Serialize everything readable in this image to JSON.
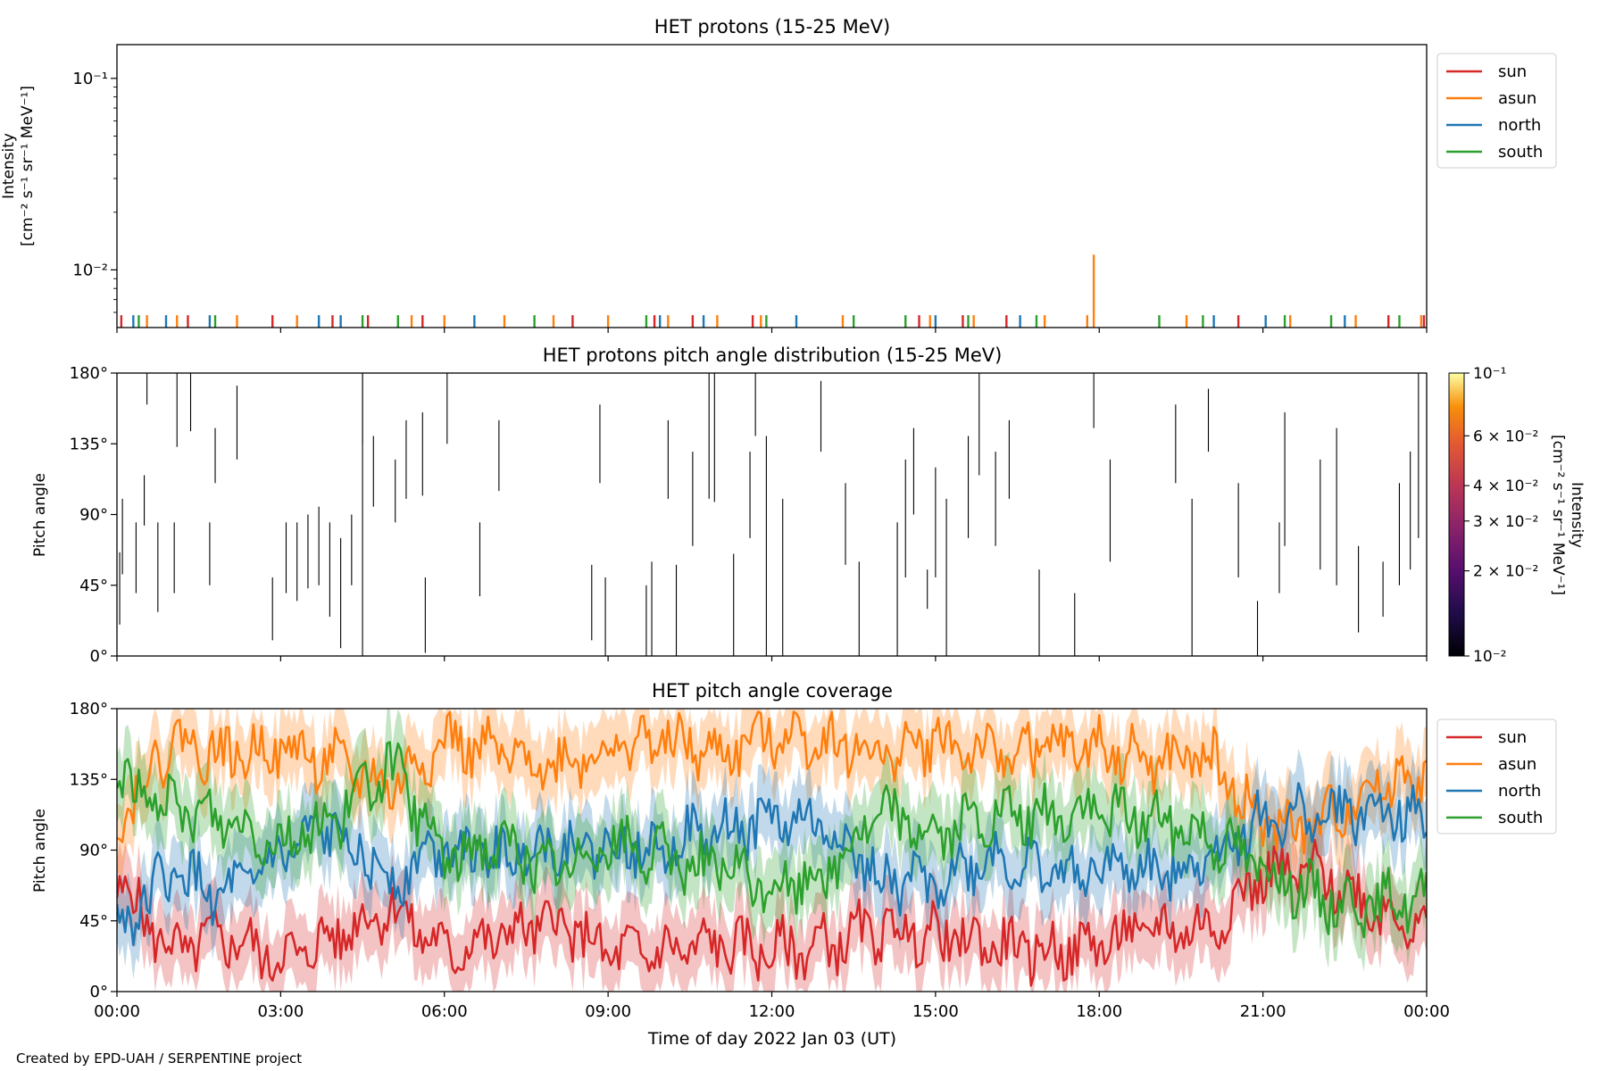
{
  "figure": {
    "footer": "Created by EPD-UAH / SERPENTINE project",
    "xlabel": "Time of day 2022 Jan 03 (UT)",
    "xticks": [
      "00:00",
      "03:00",
      "06:00",
      "09:00",
      "12:00",
      "15:00",
      "18:00",
      "21:00",
      "00:00"
    ]
  },
  "colors": {
    "sun": "#d62728",
    "asun": "#ff7f0e",
    "north": "#1f77b4",
    "south": "#2ca02c"
  },
  "chart_data": [
    {
      "type": "line",
      "title": "HET protons (15-25 MeV)",
      "ylabel": [
        "Intensity",
        "[cm⁻² s⁻¹ sr⁻¹ MeV⁻¹]"
      ],
      "yscale": "log",
      "ylim": [
        0.005,
        0.15
      ],
      "yticks": [
        "10⁻¹",
        "10⁻²"
      ],
      "xlim_hours": [
        0,
        24
      ],
      "legend": {
        "placement": "outside-right",
        "entries": [
          "sun",
          "asun",
          "north",
          "south"
        ]
      },
      "series": [
        {
          "name": "sun",
          "color": "#d62728",
          "spikes": [
            [
              0.08,
              0.0058
            ],
            [
              1.3,
              0.0058
            ],
            [
              2.85,
              0.0058
            ],
            [
              3.95,
              0.0058
            ],
            [
              4.6,
              0.0058
            ],
            [
              5.6,
              0.0058
            ],
            [
              8.35,
              0.0058
            ],
            [
              9.85,
              0.0058
            ],
            [
              10.55,
              0.0058
            ],
            [
              11.65,
              0.0058
            ],
            [
              14.7,
              0.0058
            ],
            [
              15.5,
              0.0058
            ],
            [
              16.3,
              0.0058
            ],
            [
              20.55,
              0.0058
            ],
            [
              23.3,
              0.0058
            ],
            [
              23.95,
              0.0058
            ]
          ]
        },
        {
          "name": "asun",
          "color": "#ff7f0e",
          "spikes": [
            [
              0.55,
              0.0058
            ],
            [
              1.1,
              0.0058
            ],
            [
              2.2,
              0.0058
            ],
            [
              3.3,
              0.0058
            ],
            [
              5.4,
              0.0058
            ],
            [
              6.0,
              0.0058
            ],
            [
              7.1,
              0.0058
            ],
            [
              8.0,
              0.0058
            ],
            [
              9.0,
              0.0058
            ],
            [
              10.1,
              0.0058
            ],
            [
              11.0,
              0.0058
            ],
            [
              11.8,
              0.0058
            ],
            [
              13.3,
              0.0058
            ],
            [
              14.9,
              0.0058
            ],
            [
              15.7,
              0.0058
            ],
            [
              17.0,
              0.0058
            ],
            [
              17.78,
              0.0058
            ],
            [
              17.9,
              0.012
            ],
            [
              19.6,
              0.0058
            ],
            [
              21.5,
              0.0058
            ],
            [
              22.7,
              0.0058
            ],
            [
              23.9,
              0.0058
            ]
          ]
        },
        {
          "name": "north",
          "color": "#1f77b4",
          "spikes": [
            [
              0.3,
              0.0058
            ],
            [
              0.9,
              0.0058
            ],
            [
              1.7,
              0.0058
            ],
            [
              3.7,
              0.0058
            ],
            [
              4.1,
              0.0058
            ],
            [
              6.55,
              0.0058
            ],
            [
              9.95,
              0.0058
            ],
            [
              10.75,
              0.0058
            ],
            [
              12.45,
              0.0058
            ],
            [
              15.0,
              0.0058
            ],
            [
              16.55,
              0.0058
            ],
            [
              20.1,
              0.0058
            ],
            [
              21.05,
              0.0058
            ],
            [
              22.5,
              0.0058
            ]
          ]
        },
        {
          "name": "south",
          "color": "#2ca02c",
          "spikes": [
            [
              0.4,
              0.0058
            ],
            [
              1.8,
              0.0058
            ],
            [
              4.5,
              0.0058
            ],
            [
              5.15,
              0.0058
            ],
            [
              7.65,
              0.0058
            ],
            [
              9.7,
              0.0058
            ],
            [
              11.9,
              0.0058
            ],
            [
              13.5,
              0.0058
            ],
            [
              14.45,
              0.0058
            ],
            [
              15.6,
              0.0058
            ],
            [
              16.85,
              0.0058
            ],
            [
              19.1,
              0.0058
            ],
            [
              19.9,
              0.0058
            ],
            [
              21.4,
              0.0058
            ],
            [
              22.25,
              0.0058
            ],
            [
              23.5,
              0.0058
            ]
          ]
        }
      ]
    },
    {
      "type": "heatmap",
      "title": "HET protons pitch angle distribution (15-25 MeV)",
      "ylabel": "Pitch angle",
      "yticks": [
        "0°",
        "45°",
        "90°",
        "135°",
        "180°"
      ],
      "ylim": [
        0,
        180
      ],
      "xlim_hours": [
        0,
        24
      ],
      "colorbar": {
        "label": [
          "Intensity",
          "[cm⁻² s⁻¹ sr⁻¹ MeV⁻¹]"
        ],
        "scale": "log",
        "range": [
          0.01,
          0.1
        ],
        "colormap": "inferno",
        "ticks": [
          {
            "value": 0.1,
            "label": "10⁻¹"
          },
          {
            "value": 0.06,
            "label": "6 × 10⁻²"
          },
          {
            "value": 0.04,
            "label": "4 × 10⁻²"
          },
          {
            "value": 0.03,
            "label": "3 × 10⁻²"
          },
          {
            "value": 0.02,
            "label": "2 × 10⁻²"
          },
          {
            "value": 0.01,
            "label": "10⁻²"
          }
        ]
      },
      "segments": [
        [
          0.05,
          20,
          66
        ],
        [
          0.1,
          52,
          100
        ],
        [
          0.35,
          40,
          85
        ],
        [
          0.5,
          83,
          115
        ],
        [
          0.75,
          28,
          85
        ],
        [
          0.55,
          160,
          180
        ],
        [
          1.05,
          40,
          85
        ],
        [
          1.1,
          133,
          180
        ],
        [
          1.35,
          143,
          180
        ],
        [
          1.7,
          45,
          85
        ],
        [
          1.8,
          110,
          145
        ],
        [
          2.2,
          125,
          172
        ],
        [
          2.85,
          10,
          50
        ],
        [
          3.1,
          40,
          85
        ],
        [
          3.3,
          35,
          85
        ],
        [
          3.5,
          43,
          90
        ],
        [
          3.7,
          45,
          95
        ],
        [
          3.9,
          25,
          85
        ],
        [
          4.1,
          5,
          75
        ],
        [
          4.3,
          45,
          90
        ],
        [
          4.5,
          0,
          180
        ],
        [
          4.5,
          135,
          180
        ],
        [
          4.7,
          95,
          140
        ],
        [
          5.1,
          85,
          125
        ],
        [
          5.3,
          100,
          150
        ],
        [
          5.6,
          102,
          155
        ],
        [
          5.65,
          2,
          50
        ],
        [
          6.05,
          135,
          180
        ],
        [
          6.65,
          38,
          85
        ],
        [
          7.0,
          105,
          150
        ],
        [
          8.7,
          10,
          58
        ],
        [
          8.85,
          110,
          160
        ],
        [
          8.95,
          0,
          50
        ],
        [
          9.7,
          0,
          45
        ],
        [
          9.8,
          0,
          60
        ],
        [
          10.1,
          100,
          150
        ],
        [
          10.25,
          0,
          58
        ],
        [
          10.55,
          70,
          130
        ],
        [
          10.85,
          100,
          180
        ],
        [
          10.95,
          98,
          180
        ],
        [
          11.3,
          0,
          65
        ],
        [
          11.6,
          75,
          130
        ],
        [
          11.7,
          140,
          180
        ],
        [
          11.9,
          0,
          140
        ],
        [
          12.2,
          0,
          100
        ],
        [
          12.9,
          130,
          175
        ],
        [
          13.35,
          58,
          110
        ],
        [
          13.6,
          0,
          60
        ],
        [
          14.3,
          0,
          85
        ],
        [
          14.45,
          50,
          125
        ],
        [
          14.6,
          90,
          145
        ],
        [
          14.85,
          30,
          55
        ],
        [
          15.0,
          50,
          120
        ],
        [
          15.2,
          0,
          100
        ],
        [
          15.6,
          75,
          140
        ],
        [
          15.8,
          115,
          180
        ],
        [
          16.1,
          70,
          130
        ],
        [
          16.35,
          100,
          150
        ],
        [
          16.9,
          0,
          55
        ],
        [
          17.55,
          0,
          40
        ],
        [
          17.9,
          145,
          180
        ],
        [
          18.2,
          60,
          125
        ],
        [
          19.4,
          110,
          160
        ],
        [
          19.7,
          0,
          100
        ],
        [
          20.0,
          130,
          170
        ],
        [
          20.55,
          50,
          110
        ],
        [
          20.9,
          0,
          35
        ],
        [
          21.3,
          40,
          85
        ],
        [
          21.4,
          70,
          155
        ],
        [
          22.05,
          55,
          125
        ],
        [
          22.35,
          45,
          145
        ],
        [
          22.75,
          15,
          70
        ],
        [
          23.2,
          25,
          60
        ],
        [
          23.5,
          45,
          110
        ],
        [
          23.7,
          55,
          130
        ],
        [
          23.85,
          75,
          180
        ]
      ]
    },
    {
      "type": "line",
      "title": "HET pitch angle coverage",
      "ylabel": "Pitch angle",
      "yticks": [
        "0°",
        "45°",
        "90°",
        "135°",
        "180°"
      ],
      "ylim": [
        0,
        180
      ],
      "xlim_hours": [
        0,
        24
      ],
      "legend": {
        "placement": "outside-right",
        "entries": [
          "sun",
          "asun",
          "north",
          "south"
        ]
      },
      "band_halfwidth_deg": 22,
      "series": [
        {
          "name": "sun",
          "color": "#d62728",
          "x": [
            0,
            1,
            2,
            3,
            4,
            5,
            6,
            7,
            8,
            9,
            10,
            11,
            12,
            13,
            14,
            15,
            16,
            17,
            18,
            19,
            20,
            21,
            22,
            23,
            24
          ],
          "y": [
            70,
            25,
            35,
            20,
            35,
            55,
            25,
            35,
            45,
            25,
            25,
            30,
            25,
            30,
            40,
            35,
            30,
            25,
            30,
            40,
            40,
            75,
            75,
            55,
            40
          ]
        },
        {
          "name": "asun",
          "color": "#ff7f0e",
          "x": [
            0,
            1,
            2,
            3,
            4,
            5,
            6,
            7,
            8,
            9,
            10,
            11,
            12,
            13,
            14,
            15,
            16,
            17,
            18,
            19,
            20,
            21,
            22,
            23,
            24
          ],
          "y": [
            110,
            160,
            150,
            155,
            145,
            130,
            160,
            150,
            145,
            155,
            160,
            150,
            165,
            160,
            150,
            160,
            150,
            155,
            155,
            145,
            150,
            105,
            105,
            130,
            140
          ]
        },
        {
          "name": "north",
          "color": "#1f77b4",
          "x": [
            0,
            1,
            2,
            3,
            4,
            5,
            6,
            7,
            8,
            9,
            10,
            11,
            12,
            13,
            14,
            15,
            16,
            17,
            18,
            19,
            20,
            21,
            22,
            23,
            24
          ],
          "y": [
            40,
            75,
            60,
            85,
            105,
            70,
            95,
            85,
            95,
            90,
            95,
            100,
            110,
            105,
            70,
            70,
            85,
            75,
            80,
            75,
            85,
            110,
            110,
            115,
            110
          ]
        },
        {
          "name": "south",
          "color": "#2ca02c",
          "x": [
            0,
            1,
            2,
            3,
            4,
            5,
            6,
            7,
            8,
            9,
            10,
            11,
            12,
            13,
            14,
            15,
            16,
            17,
            18,
            19,
            20,
            21,
            22,
            23,
            24
          ],
          "y": [
            135,
            115,
            110,
            95,
            110,
            145,
            85,
            95,
            75,
            95,
            85,
            80,
            65,
            75,
            115,
            100,
            110,
            110,
            115,
            110,
            100,
            80,
            60,
            55,
            60
          ]
        }
      ]
    }
  ]
}
